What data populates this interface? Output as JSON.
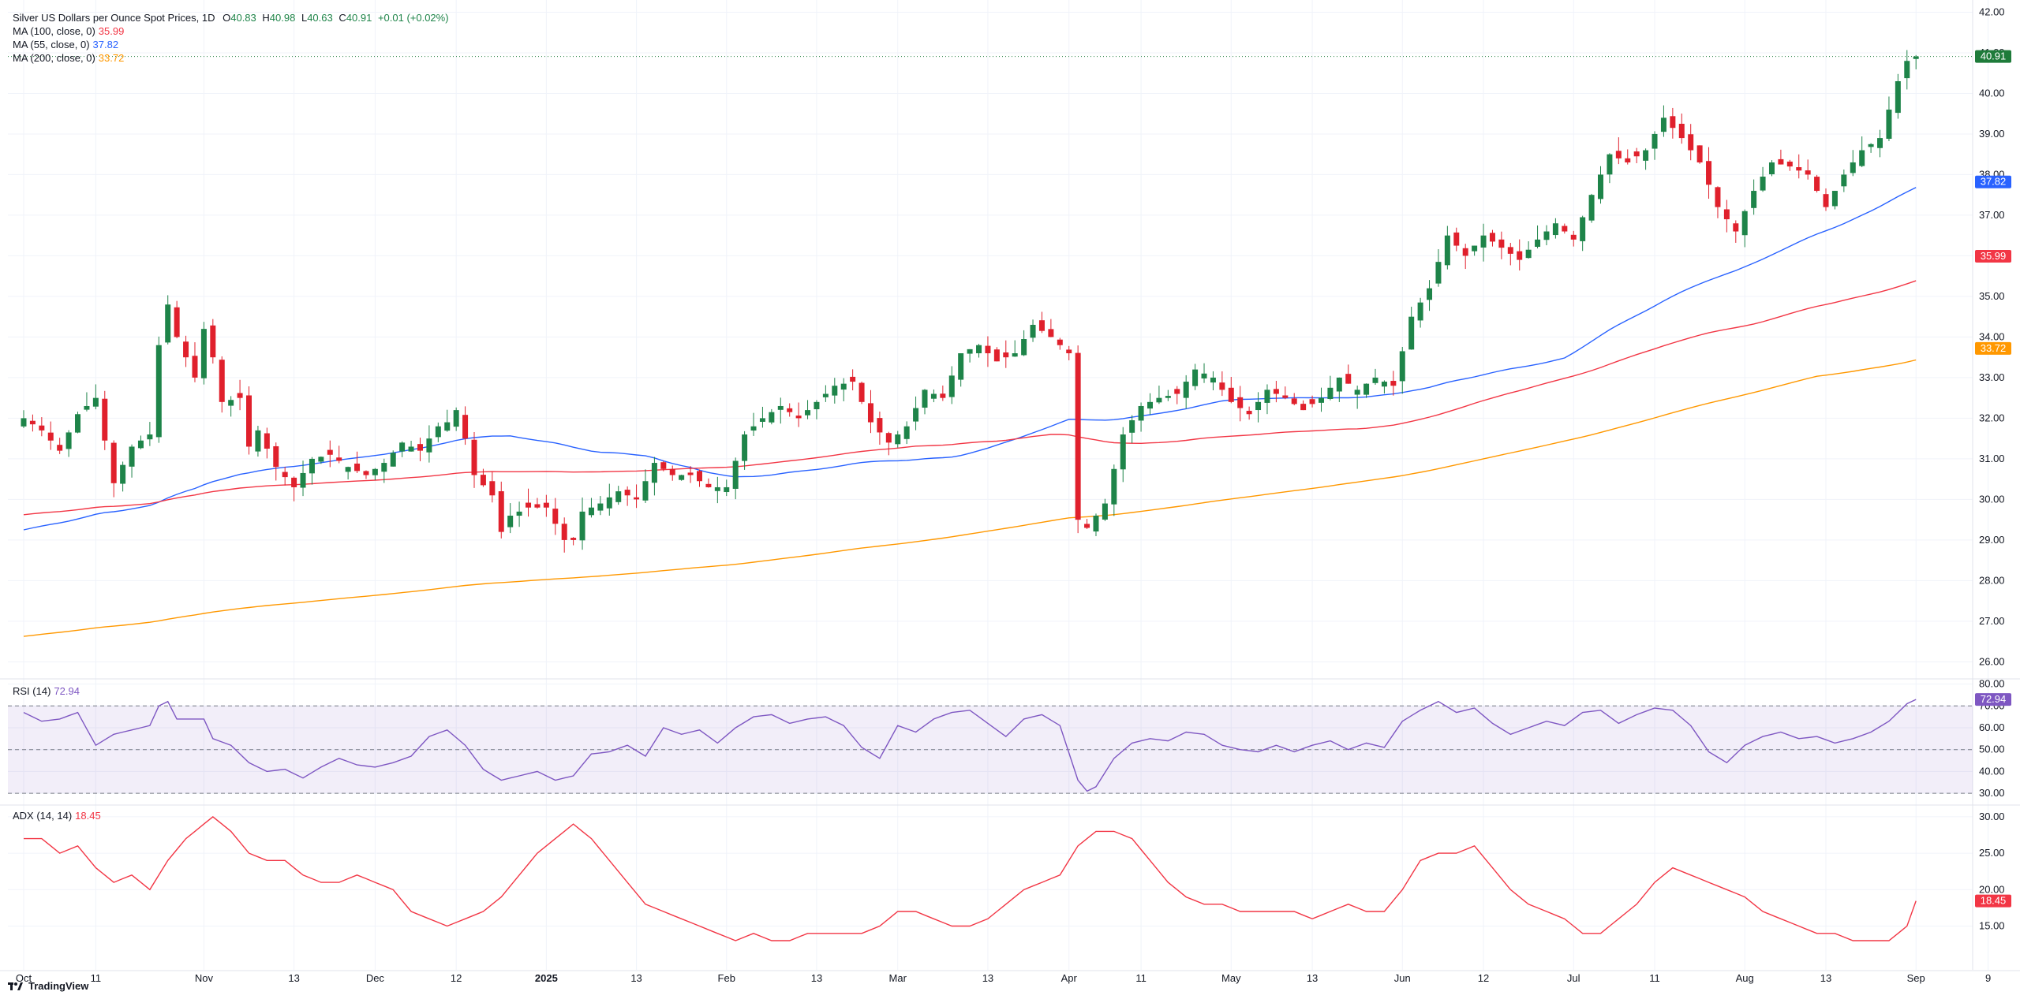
{
  "legend": {
    "symbol": "Silver US Dollars per Ounce Spot Prices, 1D",
    "o_label": "O",
    "o": "40.83",
    "h_label": "H",
    "h": "40.98",
    "l_label": "L",
    "l": "40.63",
    "c_label": "C",
    "c": "40.91",
    "change": "+0.01 (+0.02%)",
    "ma100_label": "MA (100, close, 0)",
    "ma100": "35.99",
    "ma55_label": "MA (55, close, 0)",
    "ma55": "37.82",
    "ma200_label": "MA (200, close, 0)",
    "ma200": "33.72",
    "rsi_label": "RSI (14)",
    "rsi": "72.94",
    "adx_label": "ADX (14, 14)",
    "adx": "18.45"
  },
  "footer": {
    "brand": "TradingView"
  },
  "colors": {
    "up": "#26a69a",
    "up_body": "#1e8449",
    "down": "#e0202c",
    "ma100": "#f23645",
    "ma55": "#2962ff",
    "ma200": "#ff9800",
    "rsi": "#7e57c2",
    "adx": "#f23645",
    "price_tag": "#1e7b3a"
  },
  "chart_data": [
    {
      "type": "candlestick",
      "title": "Silver US Dollars per Ounce Spot Prices, 1D",
      "ylim": [
        25.6,
        42.3
      ],
      "y_ticks": [
        "26.00",
        "27.00",
        "28.00",
        "29.00",
        "30.00",
        "31.00",
        "32.00",
        "33.00",
        "34.00",
        "35.00",
        "36.00",
        "37.00",
        "38.00",
        "39.00",
        "40.00",
        "41.00",
        "42.00"
      ],
      "x_ticks": [
        "Oct",
        "11",
        "Nov",
        "13",
        "Dec",
        "12",
        "2025",
        "13",
        "Feb",
        "13",
        "Mar",
        "13",
        "Apr",
        "11",
        "May",
        "13",
        "Jun",
        "12",
        "Jul",
        "11",
        "Aug",
        "13",
        "Sep",
        "9"
      ],
      "x_tick_bar_index": [
        0,
        8,
        20,
        30,
        39,
        48,
        58,
        68,
        78,
        88,
        97,
        107,
        116,
        124,
        134,
        143,
        153,
        162,
        172,
        181,
        191,
        200,
        210,
        218
      ],
      "last_price": "40.91",
      "ma_tags": {
        "ma55": "37.82",
        "ma100": "35.99",
        "ma200": "33.72"
      },
      "close_anchors": [
        [
          0,
          32.0
        ],
        [
          2,
          31.7
        ],
        [
          4,
          31.2
        ],
        [
          6,
          32.1
        ],
        [
          8,
          32.5
        ],
        [
          10,
          30.4
        ],
        [
          12,
          31.3
        ],
        [
          14,
          31.6
        ],
        [
          15,
          33.8
        ],
        [
          16,
          34.8
        ],
        [
          17,
          34.0
        ],
        [
          18,
          33.5
        ],
        [
          19,
          33.0
        ],
        [
          20,
          34.2
        ],
        [
          21,
          33.5
        ],
        [
          22,
          32.4
        ],
        [
          24,
          32.5
        ],
        [
          25,
          31.3
        ],
        [
          26,
          31.7
        ],
        [
          28,
          30.8
        ],
        [
          30,
          30.3
        ],
        [
          32,
          31.0
        ],
        [
          34,
          31.1
        ],
        [
          36,
          30.8
        ],
        [
          38,
          30.6
        ],
        [
          40,
          30.9
        ],
        [
          42,
          31.4
        ],
        [
          44,
          31.2
        ],
        [
          46,
          31.8
        ],
        [
          47,
          31.9
        ],
        [
          48,
          32.2
        ],
        [
          49,
          31.5
        ],
        [
          50,
          30.6
        ],
        [
          52,
          30.1
        ],
        [
          53,
          29.2
        ],
        [
          54,
          29.6
        ],
        [
          56,
          29.8
        ],
        [
          58,
          29.8
        ],
        [
          60,
          29.0
        ],
        [
          61,
          29.0
        ],
        [
          62,
          29.7
        ],
        [
          64,
          29.9
        ],
        [
          66,
          30.2
        ],
        [
          68,
          30.0
        ],
        [
          70,
          30.9
        ],
        [
          72,
          30.6
        ],
        [
          74,
          30.6
        ],
        [
          76,
          30.3
        ],
        [
          78,
          30.3
        ],
        [
          80,
          31.6
        ],
        [
          82,
          32.0
        ],
        [
          84,
          32.3
        ],
        [
          86,
          32.0
        ],
        [
          88,
          32.4
        ],
        [
          90,
          32.8
        ],
        [
          92,
          32.9
        ],
        [
          94,
          31.9
        ],
        [
          96,
          31.4
        ],
        [
          98,
          31.8
        ],
        [
          100,
          32.7
        ],
        [
          102,
          32.5
        ],
        [
          104,
          33.6
        ],
        [
          106,
          33.8
        ],
        [
          108,
          33.4
        ],
        [
          110,
          33.6
        ],
        [
          112,
          34.3
        ],
        [
          114,
          34.0
        ],
        [
          116,
          33.6
        ],
        [
          117,
          29.5
        ],
        [
          118,
          29.3
        ],
        [
          120,
          29.9
        ],
        [
          122,
          31.6
        ],
        [
          124,
          32.3
        ],
        [
          126,
          32.5
        ],
        [
          128,
          32.6
        ],
        [
          130,
          33.2
        ],
        [
          132,
          33.0
        ],
        [
          134,
          32.4
        ],
        [
          136,
          32.1
        ],
        [
          138,
          32.7
        ],
        [
          140,
          32.5
        ],
        [
          142,
          32.2
        ],
        [
          144,
          32.5
        ],
        [
          146,
          33.0
        ],
        [
          148,
          32.7
        ],
        [
          150,
          33.0
        ],
        [
          152,
          32.8
        ],
        [
          154,
          34.5
        ],
        [
          156,
          35.2
        ],
        [
          158,
          36.5
        ],
        [
          160,
          36.0
        ],
        [
          162,
          36.5
        ],
        [
          164,
          36.2
        ],
        [
          166,
          35.9
        ],
        [
          168,
          36.4
        ],
        [
          170,
          36.8
        ],
        [
          172,
          36.4
        ],
        [
          174,
          37.5
        ],
        [
          176,
          38.5
        ],
        [
          178,
          38.3
        ],
        [
          180,
          38.6
        ],
        [
          182,
          39.4
        ],
        [
          184,
          38.9
        ],
        [
          186,
          38.3
        ],
        [
          188,
          37.2
        ],
        [
          190,
          36.6
        ],
        [
          192,
          37.6
        ],
        [
          194,
          38.3
        ],
        [
          196,
          38.2
        ],
        [
          198,
          38.0
        ],
        [
          200,
          37.2
        ],
        [
          202,
          38.0
        ],
        [
          204,
          38.6
        ],
        [
          206,
          38.9
        ],
        [
          208,
          40.3
        ],
        [
          209,
          40.8
        ],
        [
          210,
          40.91
        ]
      ]
    },
    {
      "type": "line",
      "title": "RSI (14)",
      "ylim": [
        25,
        82
      ],
      "y_ticks": [
        "30.00",
        "40.00",
        "50.00",
        "60.00",
        "70.00",
        "80.00"
      ],
      "bands": [
        30,
        50,
        70
      ],
      "anchors": [
        [
          0,
          67
        ],
        [
          2,
          63
        ],
        [
          4,
          64
        ],
        [
          6,
          67
        ],
        [
          8,
          52
        ],
        [
          10,
          57
        ],
        [
          12,
          59
        ],
        [
          14,
          61
        ],
        [
          15,
          70
        ],
        [
          16,
          72
        ],
        [
          17,
          64
        ],
        [
          18,
          64
        ],
        [
          20,
          64
        ],
        [
          21,
          55
        ],
        [
          23,
          52
        ],
        [
          25,
          44
        ],
        [
          27,
          40
        ],
        [
          29,
          41
        ],
        [
          31,
          37
        ],
        [
          33,
          42
        ],
        [
          35,
          46
        ],
        [
          37,
          43
        ],
        [
          39,
          42
        ],
        [
          41,
          44
        ],
        [
          43,
          47
        ],
        [
          45,
          56
        ],
        [
          47,
          59
        ],
        [
          49,
          52
        ],
        [
          51,
          41
        ],
        [
          53,
          36
        ],
        [
          55,
          38
        ],
        [
          57,
          40
        ],
        [
          59,
          36
        ],
        [
          61,
          38
        ],
        [
          63,
          48
        ],
        [
          65,
          49
        ],
        [
          67,
          52
        ],
        [
          69,
          47
        ],
        [
          71,
          60
        ],
        [
          73,
          57
        ],
        [
          75,
          59
        ],
        [
          77,
          53
        ],
        [
          79,
          60
        ],
        [
          81,
          65
        ],
        [
          83,
          66
        ],
        [
          85,
          62
        ],
        [
          87,
          64
        ],
        [
          89,
          65
        ],
        [
          91,
          61
        ],
        [
          93,
          51
        ],
        [
          95,
          46
        ],
        [
          97,
          61
        ],
        [
          99,
          58
        ],
        [
          101,
          64
        ],
        [
          103,
          67
        ],
        [
          105,
          68
        ],
        [
          107,
          62
        ],
        [
          109,
          56
        ],
        [
          111,
          64
        ],
        [
          113,
          66
        ],
        [
          115,
          61
        ],
        [
          117,
          36
        ],
        [
          118,
          31
        ],
        [
          119,
          33
        ],
        [
          121,
          46
        ],
        [
          123,
          53
        ],
        [
          125,
          55
        ],
        [
          127,
          54
        ],
        [
          129,
          58
        ],
        [
          131,
          57
        ],
        [
          133,
          52
        ],
        [
          135,
          50
        ],
        [
          137,
          49
        ],
        [
          139,
          52
        ],
        [
          141,
          49
        ],
        [
          143,
          52
        ],
        [
          145,
          54
        ],
        [
          147,
          50
        ],
        [
          149,
          53
        ],
        [
          151,
          51
        ],
        [
          153,
          63
        ],
        [
          155,
          68
        ],
        [
          157,
          72
        ],
        [
          159,
          67
        ],
        [
          161,
          69
        ],
        [
          163,
          62
        ],
        [
          165,
          57
        ],
        [
          167,
          60
        ],
        [
          169,
          63
        ],
        [
          171,
          61
        ],
        [
          173,
          67
        ],
        [
          175,
          68
        ],
        [
          177,
          62
        ],
        [
          179,
          66
        ],
        [
          181,
          69
        ],
        [
          183,
          68
        ],
        [
          185,
          61
        ],
        [
          187,
          49
        ],
        [
          189,
          44
        ],
        [
          191,
          52
        ],
        [
          193,
          56
        ],
        [
          195,
          58
        ],
        [
          197,
          55
        ],
        [
          199,
          56
        ],
        [
          201,
          53
        ],
        [
          203,
          55
        ],
        [
          205,
          58
        ],
        [
          207,
          63
        ],
        [
          209,
          71
        ],
        [
          210,
          72.94
        ]
      ]
    },
    {
      "type": "line",
      "title": "ADX (14, 14)",
      "ylim": [
        9,
        31.5
      ],
      "y_ticks": [
        "15.00",
        "20.00",
        "25.00",
        "30.00"
      ],
      "anchors": [
        [
          0,
          27
        ],
        [
          2,
          27
        ],
        [
          4,
          25
        ],
        [
          6,
          26
        ],
        [
          8,
          23
        ],
        [
          10,
          21
        ],
        [
          12,
          22
        ],
        [
          14,
          20
        ],
        [
          16,
          24
        ],
        [
          18,
          27
        ],
        [
          20,
          29
        ],
        [
          21,
          30
        ],
        [
          23,
          28
        ],
        [
          25,
          25
        ],
        [
          27,
          24
        ],
        [
          29,
          24
        ],
        [
          31,
          22
        ],
        [
          33,
          21
        ],
        [
          35,
          21
        ],
        [
          37,
          22
        ],
        [
          39,
          21
        ],
        [
          41,
          20
        ],
        [
          43,
          17
        ],
        [
          45,
          16
        ],
        [
          47,
          15
        ],
        [
          49,
          16
        ],
        [
          51,
          17
        ],
        [
          53,
          19
        ],
        [
          55,
          22
        ],
        [
          57,
          25
        ],
        [
          59,
          27
        ],
        [
          61,
          29
        ],
        [
          63,
          27
        ],
        [
          65,
          24
        ],
        [
          67,
          21
        ],
        [
          69,
          18
        ],
        [
          71,
          17
        ],
        [
          73,
          16
        ],
        [
          75,
          15
        ],
        [
          77,
          14
        ],
        [
          79,
          13
        ],
        [
          81,
          14
        ],
        [
          83,
          13
        ],
        [
          85,
          13
        ],
        [
          87,
          14
        ],
        [
          89,
          14
        ],
        [
          91,
          14
        ],
        [
          93,
          14
        ],
        [
          95,
          15
        ],
        [
          97,
          17
        ],
        [
          99,
          17
        ],
        [
          101,
          16
        ],
        [
          103,
          15
        ],
        [
          105,
          15
        ],
        [
          107,
          16
        ],
        [
          109,
          18
        ],
        [
          111,
          20
        ],
        [
          113,
          21
        ],
        [
          115,
          22
        ],
        [
          117,
          26
        ],
        [
          119,
          28
        ],
        [
          121,
          28
        ],
        [
          123,
          27
        ],
        [
          125,
          24
        ],
        [
          127,
          21
        ],
        [
          129,
          19
        ],
        [
          131,
          18
        ],
        [
          133,
          18
        ],
        [
          135,
          17
        ],
        [
          137,
          17
        ],
        [
          139,
          17
        ],
        [
          141,
          17
        ],
        [
          143,
          16
        ],
        [
          145,
          17
        ],
        [
          147,
          18
        ],
        [
          149,
          17
        ],
        [
          151,
          17
        ],
        [
          153,
          20
        ],
        [
          155,
          24
        ],
        [
          157,
          25
        ],
        [
          159,
          25
        ],
        [
          161,
          26
        ],
        [
          163,
          23
        ],
        [
          165,
          20
        ],
        [
          167,
          18
        ],
        [
          169,
          17
        ],
        [
          171,
          16
        ],
        [
          173,
          14
        ],
        [
          175,
          14
        ],
        [
          177,
          16
        ],
        [
          179,
          18
        ],
        [
          181,
          21
        ],
        [
          183,
          23
        ],
        [
          185,
          22
        ],
        [
          187,
          21
        ],
        [
          189,
          20
        ],
        [
          191,
          19
        ],
        [
          193,
          17
        ],
        [
          195,
          16
        ],
        [
          197,
          15
        ],
        [
          199,
          14
        ],
        [
          201,
          14
        ],
        [
          203,
          13
        ],
        [
          205,
          13
        ],
        [
          207,
          13
        ],
        [
          209,
          15
        ],
        [
          210,
          18.45
        ]
      ]
    }
  ]
}
